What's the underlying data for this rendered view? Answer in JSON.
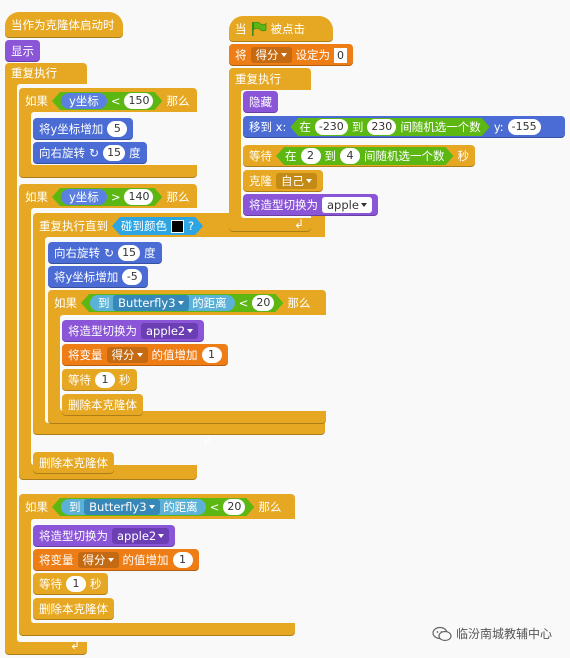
{
  "colors": {
    "control": "#e6a822",
    "motion": "#4a6cd4",
    "looks": "#8a55d7",
    "data": "#ee7d16",
    "sensing": "#2ca5e2",
    "operators": "#5cb712"
  },
  "s1": {
    "hat": "当作为克隆体启动时",
    "show": "显示",
    "forever": "重复执行",
    "if1": {
      "kw": "如果",
      "rep": "y坐标",
      "op": "<",
      "val": "150",
      "then": "那么"
    },
    "change_y": {
      "label": "将y坐标增加",
      "val": "5"
    },
    "turn1": {
      "label": "向右旋转",
      "val": "15",
      "unit": "度"
    },
    "if2": {
      "kw": "如果",
      "rep": "y坐标",
      "op": ">",
      "val": "140",
      "then": "那么"
    },
    "repeat_until": {
      "label": "重复执行直到",
      "cond": "碰到颜色",
      "q": "?"
    },
    "turn2": {
      "label": "向右旋转",
      "val": "15",
      "unit": "度"
    },
    "change_y2": {
      "label": "将y坐标增加",
      "val": "-5"
    },
    "if3": {
      "kw": "如果",
      "to": "到",
      "target": "Butterfly3",
      "dist": "的距离",
      "op": "<",
      "val": "20",
      "then": "那么"
    },
    "costume1": {
      "label": "将造型切换为",
      "val": "apple2"
    },
    "var1": {
      "pre": "将变量",
      "var": "得分",
      "post": "的值增加",
      "val": "1"
    },
    "wait1": {
      "pre": "等待",
      "val": "1",
      "unit": "秒"
    },
    "del1": "删除本克隆体",
    "del2": "删除本克隆体",
    "if4": {
      "kw": "如果",
      "to": "到",
      "target": "Butterfly3",
      "dist": "的距离",
      "op": "<",
      "val": "20",
      "then": "那么"
    },
    "costume2": {
      "label": "将造型切换为",
      "val": "apple2"
    },
    "var2": {
      "pre": "将变量",
      "var": "得分",
      "post": "的值增加",
      "val": "1"
    },
    "wait2": {
      "pre": "等待",
      "val": "1",
      "unit": "秒"
    },
    "del3": "删除本克隆体"
  },
  "s2": {
    "hat_pre": "当",
    "hat_post": "被点击",
    "set_var": {
      "pre": "将",
      "var": "得分",
      "post": "设定为",
      "val": "0"
    },
    "forever": "重复执行",
    "hide": "隐藏",
    "goto": {
      "pre": "移到 x:",
      "rand_pre": "在",
      "min": "-230",
      "to": "到",
      "max": "230",
      "rand_post": "间随机选一个数",
      "y": "y:",
      "yval": "-155"
    },
    "wait": {
      "pre": "等待",
      "rand_pre": "在",
      "min": "2",
      "to": "到",
      "max": "4",
      "rand_post": "间随机选一个数",
      "unit": "秒"
    },
    "clone": {
      "label": "克隆",
      "val": "自己"
    },
    "costume": {
      "label": "将造型切换为",
      "val": "apple"
    }
  },
  "watermark": "临汾南城教辅中心"
}
